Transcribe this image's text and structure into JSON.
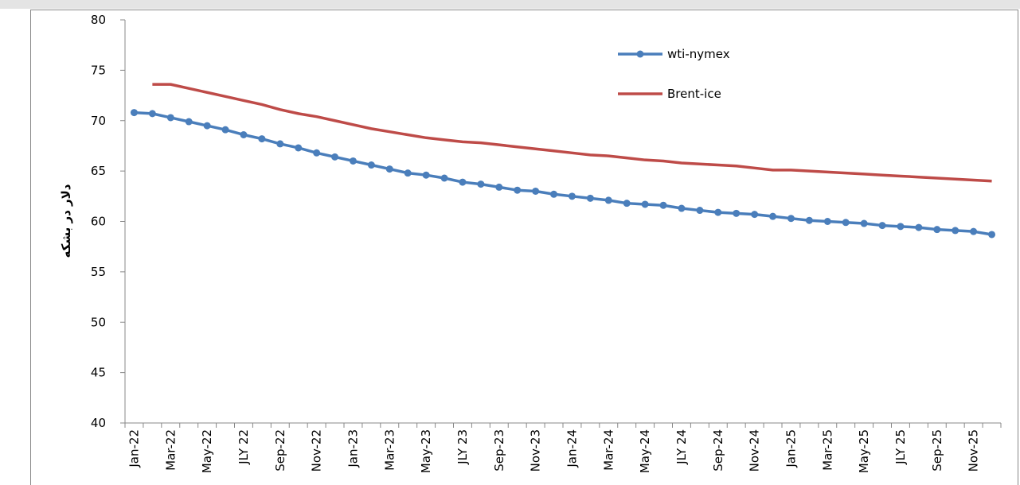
{
  "chart_data": {
    "type": "line",
    "y_label": "دلار در بشکه",
    "categories": [
      "Jan-22",
      null,
      "Mar-22",
      null,
      "May-22",
      null,
      "JLY 22",
      null,
      "Sep-22",
      null,
      "Nov-22",
      null,
      "Jan-23",
      null,
      "Mar-23",
      null,
      "May-23",
      null,
      "JLY 23",
      null,
      "Sep-23",
      null,
      "Nov-23",
      null,
      "Jan-24",
      null,
      "Mar-24",
      null,
      "May-24",
      null,
      "JLY 24",
      null,
      "Sep-24",
      null,
      "Nov-24",
      null,
      "Jan-25",
      null,
      "Mar-25",
      null,
      "May-25",
      null,
      "JLY 25",
      null,
      "Sep-25",
      null,
      "Nov-25",
      null
    ],
    "series": [
      {
        "name": "wti-nymex",
        "color": "#4a7ebb",
        "markers": true,
        "values": [
          70.8,
          70.7,
          70.3,
          69.9,
          69.5,
          69.1,
          68.6,
          68.2,
          67.7,
          67.3,
          66.8,
          66.4,
          66.0,
          65.6,
          65.2,
          64.8,
          64.6,
          64.3,
          63.9,
          63.7,
          63.4,
          63.1,
          63.0,
          62.7,
          62.5,
          62.3,
          62.1,
          61.8,
          61.7,
          61.6,
          61.3,
          61.1,
          60.9,
          60.8,
          60.7,
          60.5,
          60.3,
          60.1,
          60.0,
          59.9,
          59.8,
          59.6,
          59.5,
          59.4,
          59.2,
          59.1,
          59.0,
          58.7
        ]
      },
      {
        "name": "Brent-ice",
        "color": "#be4b48",
        "markers": false,
        "values": [
          null,
          73.6,
          73.6,
          73.2,
          72.8,
          72.4,
          72.0,
          71.6,
          71.1,
          70.7,
          70.4,
          70.0,
          69.6,
          69.2,
          68.9,
          68.6,
          68.3,
          68.1,
          67.9,
          67.8,
          67.6,
          67.4,
          67.2,
          67.0,
          66.8,
          66.6,
          66.5,
          66.3,
          66.1,
          66.0,
          65.8,
          65.7,
          65.6,
          65.5,
          65.3,
          65.1,
          65.1,
          65.0,
          64.9,
          64.8,
          64.7,
          64.6,
          64.5,
          64.4,
          64.3,
          64.2,
          64.1,
          64.0
        ]
      }
    ],
    "ylim": [
      40,
      80
    ],
    "yticks": [
      40,
      45,
      50,
      55,
      60,
      65,
      70,
      75,
      80
    ],
    "grid": false
  }
}
